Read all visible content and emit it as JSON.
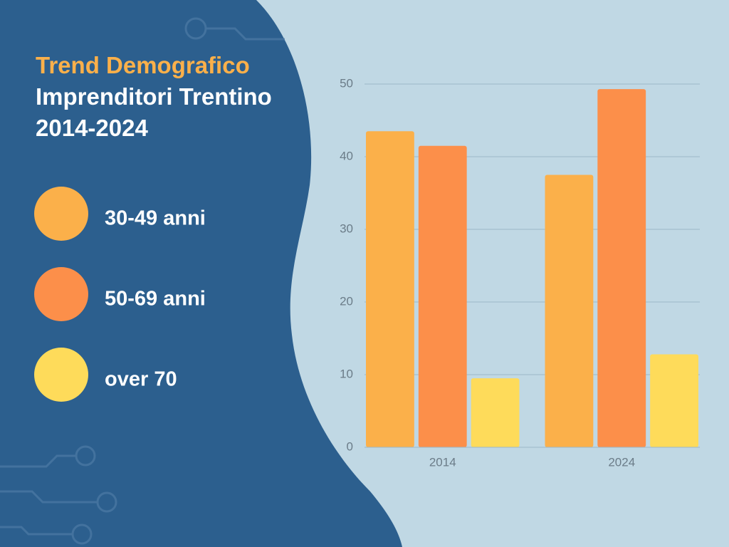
{
  "chart_data": {
    "type": "bar",
    "title": "Trend Demografico",
    "subtitle": "Imprenditori Trentino 2014-2024",
    "categories": [
      "2014",
      "2024"
    ],
    "series": [
      {
        "name": "30-49 anni",
        "color": "#fbb04a",
        "values": [
          43.5,
          37.5
        ]
      },
      {
        "name": "50-69 anni",
        "color": "#fc8f4a",
        "values": [
          41.5,
          49.3
        ]
      },
      {
        "name": "over 70",
        "color": "#fedb5a",
        "values": [
          9.5,
          12.8
        ]
      }
    ],
    "ylim": [
      0,
      50
    ],
    "yticks": [
      0,
      10,
      20,
      30,
      40,
      50
    ],
    "grid": true
  }
}
